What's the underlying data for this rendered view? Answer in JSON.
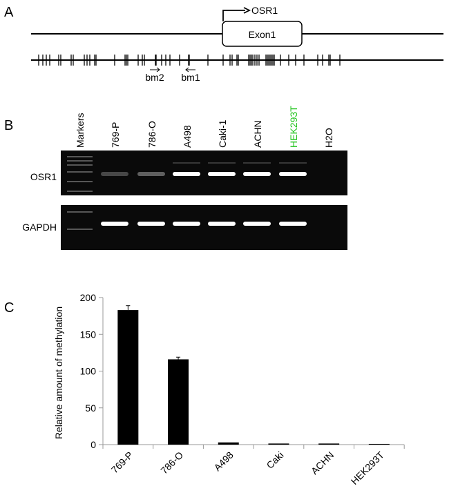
{
  "panel_a": {
    "label": "A",
    "gene_label": "OSR1",
    "exon_label": "Exon1",
    "primer_bm2": "bm2",
    "primer_bm1": "bm1"
  },
  "panel_b": {
    "label": "B",
    "lanes": [
      {
        "name": "Markers",
        "color": "#000000"
      },
      {
        "name": "769-P",
        "color": "#000000"
      },
      {
        "name": "786-O",
        "color": "#000000"
      },
      {
        "name": "A498",
        "color": "#000000"
      },
      {
        "name": "Caki-1",
        "color": "#000000"
      },
      {
        "name": "ACHN",
        "color": "#000000"
      },
      {
        "name": "HEK293T",
        "color": "#22c41e"
      },
      {
        "name": "H2O",
        "color": "#000000"
      }
    ],
    "row_osr1": "OSR1",
    "row_gapdh": "GAPDH",
    "osr1_band_intensity": [
      0,
      0.25,
      0.35,
      1,
      1,
      1,
      1,
      0
    ],
    "gapdh_band_intensity": [
      0,
      1,
      1,
      1,
      1,
      1,
      1,
      0
    ]
  },
  "panel_c": {
    "label": "C"
  },
  "chart_data": {
    "type": "bar",
    "title": "",
    "xlabel": "",
    "ylabel": "Relative amount of methylation",
    "categories": [
      "769-P",
      "786-O",
      "A498",
      "Caki",
      "ACHN",
      "HEK293T"
    ],
    "values": [
      183,
      116,
      3,
      1.5,
      1.5,
      1
    ],
    "error": [
      6,
      3,
      0,
      0,
      0,
      0
    ],
    "ylim": [
      0,
      200
    ],
    "yticks": [
      "0",
      "50",
      "100",
      "150",
      "200"
    ],
    "bar_color": "#000000",
    "grid": false
  }
}
